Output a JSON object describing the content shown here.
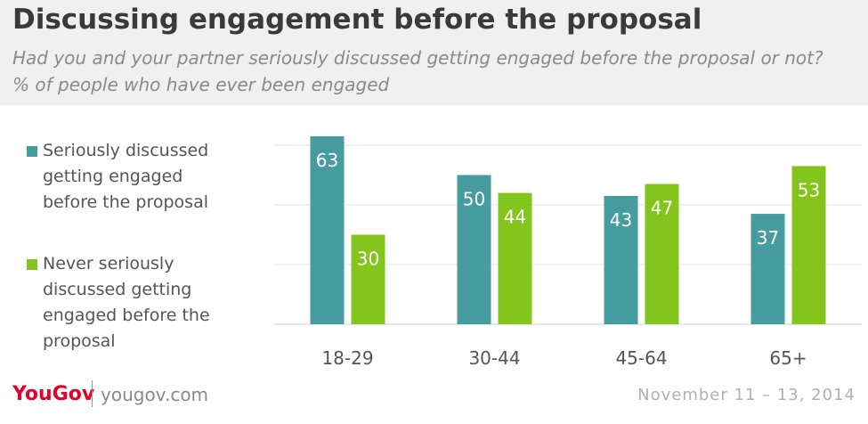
{
  "title": "Discussing engagement before the proposal",
  "subtitle_line1": "Had you and your partner seriously discussed getting engaged before the proposal or not?",
  "subtitle_line2": "% of people who have ever been engaged",
  "legend": [
    {
      "label": "Seriously discussed getting engaged before the proposal",
      "color": "#469c9f"
    },
    {
      "label": "Never seriously discussed getting engaged before the proposal",
      "color": "#84c51d"
    }
  ],
  "chart_data": {
    "type": "bar",
    "categories": [
      "18-29",
      "30-44",
      "45-64",
      "65+"
    ],
    "series": [
      {
        "name": "Seriously discussed getting engaged before the proposal",
        "values": [
          63,
          50,
          43,
          37
        ],
        "color": "#469c9f"
      },
      {
        "name": "Never seriously discussed getting engaged before the proposal",
        "values": [
          30,
          44,
          47,
          53
        ],
        "color": "#84c51d"
      }
    ],
    "ylim": [
      0,
      60
    ],
    "grid": true
  },
  "footer": {
    "logo": "YouGov",
    "site": "yougov.com",
    "date": "November 11 – 13, 2014"
  }
}
